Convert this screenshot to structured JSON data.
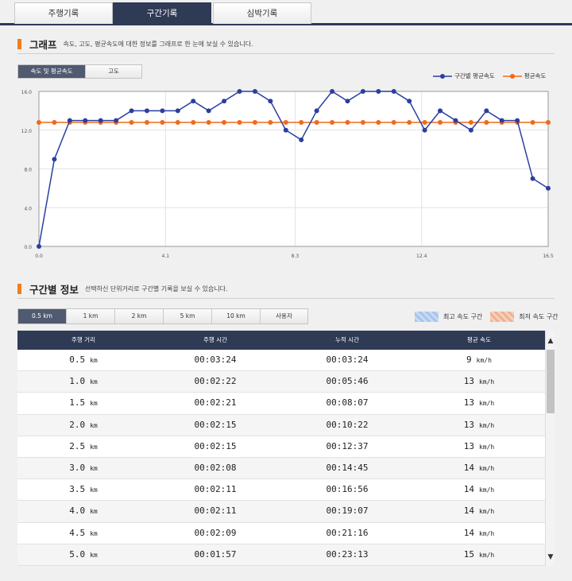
{
  "top_tabs": [
    "주행기록",
    "구간기록",
    "심박기록"
  ],
  "graph_section": {
    "title": "그래프",
    "description": "속도, 고도, 평균속도에 대한 정보를 그래프로 한 눈에 보실 수 있습니다.",
    "toggle": [
      "속도 및 평균속도",
      "고도"
    ],
    "legend": [
      "구간별 평균속도",
      "평균속도"
    ]
  },
  "colors": {
    "series_speed": "#2b3fa0",
    "series_avg": "#f06a1a",
    "header": "#2f3a55",
    "accent": "#f07e1a"
  },
  "chart_data": {
    "type": "line",
    "xlim": [
      0,
      16.5
    ],
    "ylim": [
      0,
      16
    ],
    "x_ticks": [
      "0.0",
      "4.1",
      "8.3",
      "12.4",
      "16.5"
    ],
    "y_ticks": [
      "0.0",
      "4.0",
      "8.0",
      "12.0",
      "16.0"
    ],
    "series": [
      {
        "name": "구간별 평균속도",
        "x": [
          0,
          0.5,
          1,
          1.5,
          2,
          2.5,
          3,
          3.5,
          4,
          4.5,
          5,
          5.5,
          6,
          6.5,
          7,
          7.5,
          8,
          8.5,
          9,
          9.5,
          10,
          10.5,
          11,
          11.5,
          12,
          12.5,
          13,
          13.5,
          14,
          14.5,
          15,
          15.5,
          16,
          16.5
        ],
        "y": [
          0,
          9,
          13,
          13,
          13,
          13,
          14,
          14,
          14,
          14,
          15,
          14,
          15,
          16,
          16,
          15,
          12,
          11,
          14,
          16,
          15,
          16,
          16,
          16,
          15,
          12,
          14,
          13,
          12,
          14,
          13,
          13,
          7,
          6
        ]
      },
      {
        "name": "평균속도",
        "x": [
          0,
          0.5,
          1,
          1.5,
          2,
          2.5,
          3,
          3.5,
          4,
          4.5,
          5,
          5.5,
          6,
          6.5,
          7,
          7.5,
          8,
          8.5,
          9,
          9.5,
          10,
          10.5,
          11,
          11.5,
          12,
          12.5,
          13,
          13.5,
          14,
          14.5,
          15,
          15.5,
          16,
          16.5
        ],
        "y": [
          12.8,
          12.8,
          12.8,
          12.8,
          12.8,
          12.8,
          12.8,
          12.8,
          12.8,
          12.8,
          12.8,
          12.8,
          12.8,
          12.8,
          12.8,
          12.8,
          12.8,
          12.8,
          12.8,
          12.8,
          12.8,
          12.8,
          12.8,
          12.8,
          12.8,
          12.8,
          12.8,
          12.8,
          12.8,
          12.8,
          12.8,
          12.8,
          12.8,
          12.8
        ]
      }
    ]
  },
  "interval_section": {
    "title": "구간별 정보",
    "description": "선택하신 단위거리로 구간별 기록을 보실 수 있습니다.",
    "units": [
      "0.5 km",
      "1 km",
      "2 km",
      "5 km",
      "10 km",
      "사용자"
    ],
    "legend_max": "최고 속도 구간",
    "legend_min": "최저 속도 구간",
    "headers": [
      "주행 거리",
      "주행 시간",
      "누적 시간",
      "평균 속도"
    ],
    "rows": [
      {
        "dist": "0.5",
        "dist_unit": "km",
        "time": "00:03:24",
        "cum": "00:03:24",
        "speed": "9",
        "speed_unit": "km/h"
      },
      {
        "dist": "1.0",
        "dist_unit": "km",
        "time": "00:02:22",
        "cum": "00:05:46",
        "speed": "13",
        "speed_unit": "km/h"
      },
      {
        "dist": "1.5",
        "dist_unit": "km",
        "time": "00:02:21",
        "cum": "00:08:07",
        "speed": "13",
        "speed_unit": "km/h"
      },
      {
        "dist": "2.0",
        "dist_unit": "km",
        "time": "00:02:15",
        "cum": "00:10:22",
        "speed": "13",
        "speed_unit": "km/h"
      },
      {
        "dist": "2.5",
        "dist_unit": "km",
        "time": "00:02:15",
        "cum": "00:12:37",
        "speed": "13",
        "speed_unit": "km/h"
      },
      {
        "dist": "3.0",
        "dist_unit": "km",
        "time": "00:02:08",
        "cum": "00:14:45",
        "speed": "14",
        "speed_unit": "km/h"
      },
      {
        "dist": "3.5",
        "dist_unit": "km",
        "time": "00:02:11",
        "cum": "00:16:56",
        "speed": "14",
        "speed_unit": "km/h"
      },
      {
        "dist": "4.0",
        "dist_unit": "km",
        "time": "00:02:11",
        "cum": "00:19:07",
        "speed": "14",
        "speed_unit": "km/h"
      },
      {
        "dist": "4.5",
        "dist_unit": "km",
        "time": "00:02:09",
        "cum": "00:21:16",
        "speed": "14",
        "speed_unit": "km/h"
      },
      {
        "dist": "5.0",
        "dist_unit": "km",
        "time": "00:01:57",
        "cum": "00:23:13",
        "speed": "15",
        "speed_unit": "km/h"
      }
    ],
    "scroll_up_icon": "▲",
    "scroll_down_icon": "▼"
  }
}
